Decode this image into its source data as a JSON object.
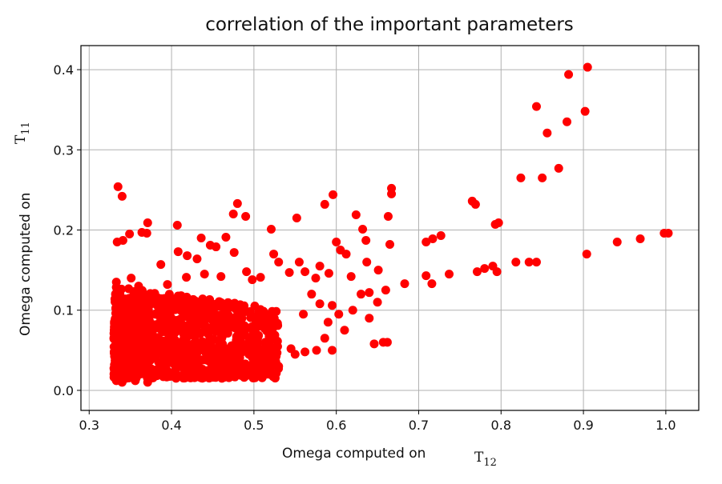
{
  "chart_data": {
    "type": "scatter",
    "title": "correlation of the important parameters",
    "xlabel": "Omega computed on",
    "xlabel_sub": "T",
    "xlabel_subscript": "12",
    "ylabel": "Omega computed on",
    "ylabel_sub": "T",
    "ylabel_subscript": "11",
    "xlim": [
      0.29,
      1.04
    ],
    "ylim": [
      -0.025,
      0.43
    ],
    "xticks": [
      0.3,
      0.4,
      0.5,
      0.6,
      0.7,
      0.8,
      0.9,
      1.0
    ],
    "xtick_labels": [
      "0.3",
      "0.4",
      "0.5",
      "0.6",
      "0.7",
      "0.8",
      "0.9",
      "1.0"
    ],
    "yticks": [
      0.0,
      0.1,
      0.2,
      0.3,
      0.4
    ],
    "ytick_labels": [
      "0.0",
      "0.1",
      "0.2",
      "0.3",
      "0.4"
    ],
    "grid": true,
    "marker_color": "#ff0000",
    "series": [
      {
        "points": [
          [
            0.905,
            0.403
          ],
          [
            0.882,
            0.394
          ],
          [
            0.843,
            0.354
          ],
          [
            0.902,
            0.348
          ],
          [
            0.88,
            0.335
          ],
          [
            0.856,
            0.321
          ],
          [
            0.87,
            0.277
          ],
          [
            0.824,
            0.265
          ],
          [
            0.85,
            0.265
          ],
          [
            0.335,
            0.254
          ],
          [
            0.34,
            0.242
          ],
          [
            0.667,
            0.252
          ],
          [
            0.667,
            0.245
          ],
          [
            0.596,
            0.244
          ],
          [
            0.48,
            0.233
          ],
          [
            0.586,
            0.232
          ],
          [
            0.765,
            0.236
          ],
          [
            0.769,
            0.232
          ],
          [
            0.475,
            0.22
          ],
          [
            0.49,
            0.217
          ],
          [
            0.624,
            0.219
          ],
          [
            0.663,
            0.217
          ],
          [
            0.552,
            0.215
          ],
          [
            0.371,
            0.209
          ],
          [
            0.407,
            0.206
          ],
          [
            0.793,
            0.207
          ],
          [
            0.797,
            0.209
          ],
          [
            0.521,
            0.201
          ],
          [
            0.632,
            0.201
          ],
          [
            0.364,
            0.197
          ],
          [
            0.37,
            0.196
          ],
          [
            0.998,
            0.196
          ],
          [
            1.003,
            0.196
          ],
          [
            0.969,
            0.189
          ],
          [
            0.941,
            0.185
          ],
          [
            0.727,
            0.193
          ],
          [
            0.717,
            0.189
          ],
          [
            0.709,
            0.185
          ],
          [
            0.334,
            0.185
          ],
          [
            0.341,
            0.187
          ],
          [
            0.349,
            0.195
          ],
          [
            0.436,
            0.19
          ],
          [
            0.466,
            0.191
          ],
          [
            0.6,
            0.185
          ],
          [
            0.636,
            0.187
          ],
          [
            0.665,
            0.182
          ],
          [
            0.904,
            0.17
          ],
          [
            0.447,
            0.181
          ],
          [
            0.454,
            0.179
          ],
          [
            0.408,
            0.173
          ],
          [
            0.419,
            0.168
          ],
          [
            0.431,
            0.164
          ],
          [
            0.476,
            0.172
          ],
          [
            0.524,
            0.17
          ],
          [
            0.53,
            0.16
          ],
          [
            0.555,
            0.16
          ],
          [
            0.58,
            0.155
          ],
          [
            0.605,
            0.175
          ],
          [
            0.612,
            0.17
          ],
          [
            0.637,
            0.16
          ],
          [
            0.818,
            0.16
          ],
          [
            0.834,
            0.16
          ],
          [
            0.843,
            0.16
          ],
          [
            0.79,
            0.155
          ],
          [
            0.78,
            0.152
          ],
          [
            0.771,
            0.148
          ],
          [
            0.795,
            0.148
          ],
          [
            0.737,
            0.145
          ],
          [
            0.709,
            0.143
          ],
          [
            0.716,
            0.133
          ],
          [
            0.683,
            0.133
          ],
          [
            0.651,
            0.15
          ],
          [
            0.66,
            0.125
          ],
          [
            0.387,
            0.157
          ],
          [
            0.351,
            0.14
          ],
          [
            0.36,
            0.13
          ],
          [
            0.395,
            0.132
          ],
          [
            0.418,
            0.141
          ],
          [
            0.44,
            0.145
          ],
          [
            0.46,
            0.142
          ],
          [
            0.491,
            0.148
          ],
          [
            0.498,
            0.138
          ],
          [
            0.508,
            0.141
          ],
          [
            0.543,
            0.147
          ],
          [
            0.562,
            0.148
          ],
          [
            0.575,
            0.14
          ],
          [
            0.591,
            0.146
          ],
          [
            0.618,
            0.142
          ],
          [
            0.63,
            0.12
          ],
          [
            0.64,
            0.122
          ],
          [
            0.65,
            0.11
          ],
          [
            0.62,
            0.1
          ],
          [
            0.603,
            0.095
          ],
          [
            0.595,
            0.106
          ],
          [
            0.58,
            0.108
          ],
          [
            0.57,
            0.12
          ],
          [
            0.56,
            0.095
          ],
          [
            0.59,
            0.085
          ],
          [
            0.61,
            0.075
          ],
          [
            0.586,
            0.065
          ],
          [
            0.576,
            0.05
          ],
          [
            0.595,
            0.05
          ],
          [
            0.562,
            0.048
          ],
          [
            0.55,
            0.045
          ],
          [
            0.545,
            0.052
          ],
          [
            0.64,
            0.09
          ],
          [
            0.646,
            0.058
          ],
          [
            0.657,
            0.06
          ],
          [
            0.662,
            0.06
          ],
          [
            0.522,
            0.04
          ],
          [
            0.53,
            0.03
          ],
          [
            0.513,
            0.025
          ],
          [
            0.48,
            0.027
          ],
          [
            0.47,
            0.024
          ],
          [
            0.45,
            0.021
          ],
          [
            0.436,
            0.02
          ],
          [
            0.42,
            0.019
          ],
          [
            0.405,
            0.018
          ],
          [
            0.39,
            0.017
          ],
          [
            0.371,
            0.01
          ],
          [
            0.356,
            0.012
          ],
          [
            0.34,
            0.01
          ],
          [
            0.333,
            0.012
          ],
          [
            0.345,
            0.015
          ],
          [
            0.36,
            0.02
          ],
          [
            0.333,
            0.135
          ],
          [
            0.333,
            0.121
          ],
          [
            0.338,
            0.11
          ],
          [
            0.336,
            0.1
          ],
          [
            0.35,
            0.108
          ]
        ]
      }
    ],
    "cloud": {
      "count": 1100,
      "x_range": [
        0.33,
        0.53
      ],
      "y_range": [
        0.015,
        0.13
      ],
      "seed": 12345
    }
  }
}
